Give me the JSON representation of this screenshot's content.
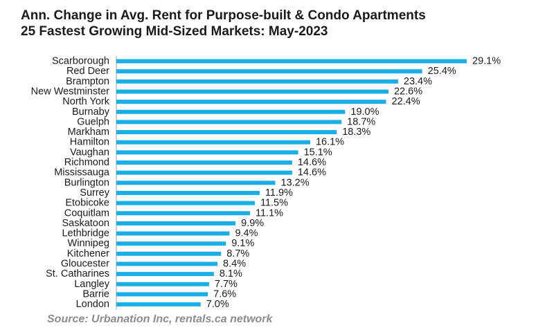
{
  "chart_data": {
    "type": "bar",
    "orientation": "horizontal",
    "title": "Ann. Change in Avg. Rent for Purpose-built & Condo Apartments",
    "subtitle": "25 Fastest Growing Mid-Sized Markets: May-2023",
    "categories": [
      "Scarborough",
      "Red Deer",
      "Brampton",
      "New Westminster",
      "North York",
      "Burnaby",
      "Guelph",
      "Markham",
      "Hamilton",
      "Vaughan",
      "Richmond",
      "Mississauga",
      "Burlington",
      "Surrey",
      "Etobicoke",
      "Coquitlam",
      "Saskatoon",
      "Lethbridge",
      "Winnipeg",
      "Kitchener",
      "Gloucester",
      "St. Catharines",
      "Langley",
      "Barrie",
      "London"
    ],
    "values": [
      29.1,
      25.4,
      23.4,
      22.6,
      22.4,
      19.0,
      18.7,
      18.3,
      16.1,
      15.1,
      14.6,
      14.6,
      13.2,
      11.9,
      11.5,
      11.1,
      9.9,
      9.4,
      9.1,
      8.7,
      8.4,
      8.1,
      7.7,
      7.6,
      7.0
    ],
    "value_labels": [
      "29.1%",
      "25.4%",
      "23.4%",
      "22.6%",
      "22.4%",
      "19.0%",
      "18.7%",
      "18.3%",
      "16.1%",
      "15.1%",
      "14.6%",
      "14.6%",
      "13.2%",
      "11.9%",
      "11.5%",
      "11.1%",
      "9.9%",
      "9.4%",
      "9.1%",
      "8.7%",
      "8.4%",
      "8.1%",
      "7.7%",
      "7.6%",
      "7.0%"
    ],
    "xlim": [
      0,
      29.1
    ],
    "bar_color": "#1aaee8",
    "axis_color": "#999999",
    "grid": false,
    "legend": "none"
  },
  "source": "Source: Urbanation Inc, rentals.ca network"
}
